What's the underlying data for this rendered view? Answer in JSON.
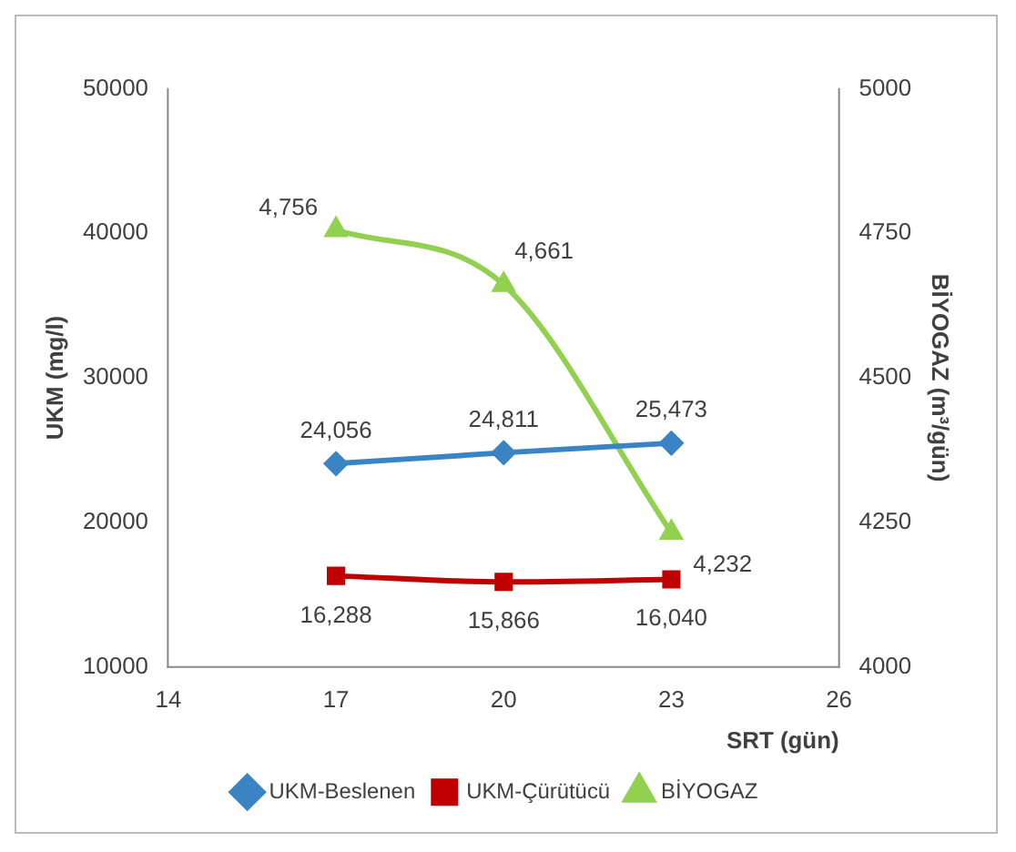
{
  "chart_data": {
    "type": "line",
    "xlabel": "SRT (gün)",
    "ylabel": "UKM (mg/l)",
    "y2label": "BİYOGAZ (m³/gün)",
    "x": [
      17,
      20,
      23
    ],
    "xlim": [
      14,
      26
    ],
    "xticks": [
      14,
      17,
      20,
      23,
      26
    ],
    "ylim": [
      10000,
      50000
    ],
    "yticks": [
      10000,
      20000,
      30000,
      40000,
      50000
    ],
    "y2lim": [
      4000,
      5000
    ],
    "y2ticks": [
      4000,
      4250,
      4500,
      4750,
      5000
    ],
    "grid": false,
    "legend": "bottom",
    "series": [
      {
        "name": "UKM-Beslenen",
        "color": "#3a84c4",
        "marker": "diamond",
        "values": [
          24056,
          24811,
          25473
        ],
        "value_labels": [
          "24,056",
          "24,811",
          "25,473"
        ]
      },
      {
        "name": "UKM-Çürütücü",
        "color": "#c00000",
        "marker": "square",
        "values": [
          16288,
          15866,
          16040
        ],
        "value_labels": [
          "16,288",
          "15,866",
          "16,040"
        ]
      },
      {
        "name": "BİYOGAZ",
        "color": "#92d050",
        "marker": "triangle",
        "axis": "y2",
        "values": [
          4756,
          4661,
          4232
        ],
        "value_labels": [
          "4,756",
          "4,661",
          "4,232"
        ]
      }
    ]
  }
}
